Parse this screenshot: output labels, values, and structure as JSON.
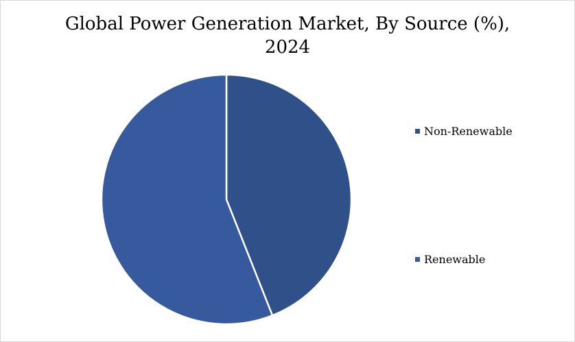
{
  "chart_data": {
    "type": "pie",
    "title_lines": [
      "Global Power Generation Market, By Source (%),",
      "2024"
    ],
    "slices": [
      {
        "label": "Non-Renewable",
        "value": 44,
        "color": "#2f5089"
      },
      {
        "label": "Renewable",
        "value": 56,
        "color": "#375a9e"
      }
    ],
    "legend_position": "right"
  }
}
